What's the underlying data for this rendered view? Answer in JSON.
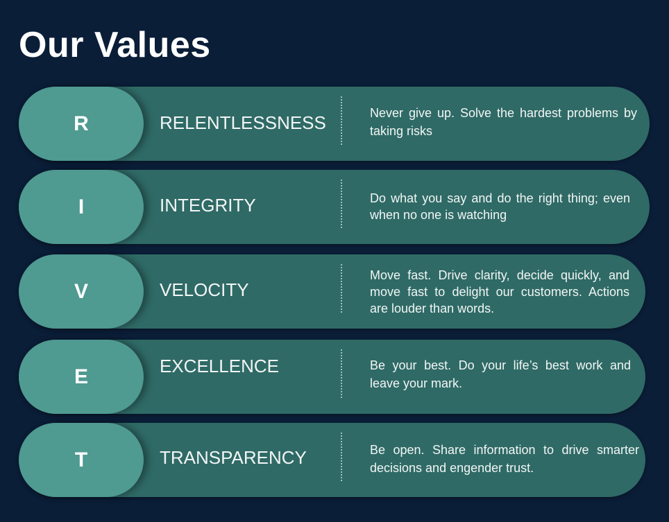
{
  "title": "Our Values",
  "values": [
    {
      "letter": "R",
      "name": "RELENTLESSNESS",
      "description": "Never give up. Solve the hardest problems by taking risks"
    },
    {
      "letter": "I",
      "name": "INTEGRITY",
      "description": "Do what you say and do the right thing; even when no one is watching"
    },
    {
      "letter": "V",
      "name": "VELOCITY",
      "description": "Move fast. Drive clarity, decide quickly, and move fast to delight our customers. Actions are louder than words."
    },
    {
      "letter": "E",
      "name": "EXCELLENCE",
      "description": "Be your best. Do your life’s best work and leave your mark."
    },
    {
      "letter": "T",
      "name": "TRANSPARENCY",
      "description": "Be open. Share information to drive smarter decisions and engender trust."
    }
  ],
  "colors": {
    "background": "#0b1e38",
    "pill": "#2f6a66",
    "badge": "#4f9a91",
    "text": "#f2f6f5"
  }
}
